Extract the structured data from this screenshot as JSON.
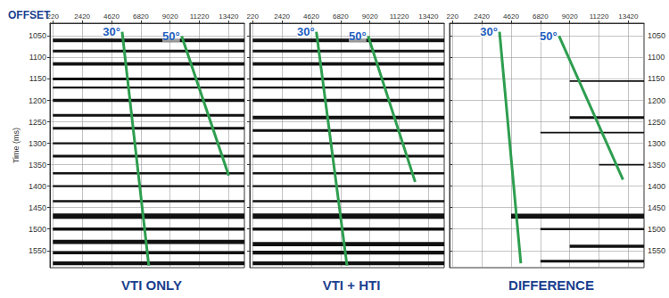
{
  "chart_data": [
    {
      "type": "line",
      "title": "VTI ONLY",
      "x_label": "OFFSET",
      "y_label": "Time (ms)",
      "xlim": [
        0,
        14600
      ],
      "xticks": [
        220,
        2420,
        4620,
        6820,
        9020,
        11220,
        13420
      ],
      "ylim": [
        1020,
        1590
      ],
      "yticks": [
        1050,
        1100,
        1150,
        1200,
        1250,
        1300,
        1350,
        1400,
        1450,
        1500,
        1550
      ],
      "grid": true,
      "color": "#111111",
      "reflections": [
        {
          "time": 1060,
          "amplitude": 0.7,
          "offsets": [
            220,
            14600
          ]
        },
        {
          "time": 1085,
          "amplitude": 0.5,
          "offsets": [
            220,
            14600
          ]
        },
        {
          "time": 1115,
          "amplitude": 0.6,
          "offsets": [
            220,
            14600
          ]
        },
        {
          "time": 1150,
          "amplitude": 0.5,
          "offsets": [
            220,
            14600
          ]
        },
        {
          "time": 1170,
          "amplitude": 0.4,
          "offsets": [
            220,
            14600
          ]
        },
        {
          "time": 1200,
          "amplitude": 0.6,
          "offsets": [
            220,
            14600
          ]
        },
        {
          "time": 1235,
          "amplitude": 0.5,
          "offsets": [
            220,
            14600
          ]
        },
        {
          "time": 1265,
          "amplitude": 0.5,
          "offsets": [
            220,
            14600
          ]
        },
        {
          "time": 1300,
          "amplitude": 0.4,
          "offsets": [
            220,
            14600
          ]
        },
        {
          "time": 1330,
          "amplitude": 0.5,
          "offsets": [
            220,
            14600
          ]
        },
        {
          "time": 1370,
          "amplitude": 0.4,
          "offsets": [
            220,
            14600
          ]
        },
        {
          "time": 1400,
          "amplitude": 0.4,
          "offsets": [
            220,
            14600
          ]
        },
        {
          "time": 1435,
          "amplitude": 0.4,
          "offsets": [
            220,
            14600
          ]
        },
        {
          "time": 1470,
          "amplitude": 1.0,
          "offsets": [
            220,
            14600
          ]
        },
        {
          "time": 1500,
          "amplitude": 0.6,
          "offsets": [
            220,
            14600
          ]
        },
        {
          "time": 1530,
          "amplitude": 0.8,
          "offsets": [
            220,
            14600
          ]
        },
        {
          "time": 1555,
          "amplitude": 0.6,
          "offsets": [
            220,
            14600
          ]
        },
        {
          "time": 1580,
          "amplitude": 0.7,
          "offsets": [
            220,
            14600
          ]
        }
      ],
      "series": [
        {
          "name": "30°",
          "color": "#2e9e4f",
          "x": [
            5420,
            7420
          ],
          "values": [
            1040,
            1585
          ]
        },
        {
          "name": "50°",
          "color": "#2e9e4f",
          "x": [
            9890,
            13420
          ],
          "values": [
            1050,
            1375
          ]
        }
      ]
    },
    {
      "type": "line",
      "title": "VTI + HTI",
      "xlim": [
        0,
        14600
      ],
      "xticks": [
        220,
        2420,
        4620,
        6820,
        9020,
        11220,
        13420
      ],
      "ylim": [
        1020,
        1590
      ],
      "yticks": [
        1050,
        1100,
        1150,
        1200,
        1250,
        1300,
        1350,
        1400,
        1450,
        1500,
        1550
      ],
      "grid": true,
      "tick_labels": "x",
      "color": "#111111",
      "reflections": [
        {
          "time": 1060,
          "amplitude": 0.7,
          "offsets": [
            220,
            14600
          ]
        },
        {
          "time": 1085,
          "amplitude": 0.5,
          "offsets": [
            220,
            14600
          ]
        },
        {
          "time": 1115,
          "amplitude": 0.6,
          "offsets": [
            220,
            14600
          ]
        },
        {
          "time": 1150,
          "amplitude": 0.5,
          "offsets": [
            220,
            14600
          ]
        },
        {
          "time": 1170,
          "amplitude": 0.4,
          "offsets": [
            220,
            14600
          ]
        },
        {
          "time": 1200,
          "amplitude": 0.6,
          "offsets": [
            220,
            14600
          ]
        },
        {
          "time": 1240,
          "amplitude": 0.7,
          "offsets": [
            220,
            14600
          ]
        },
        {
          "time": 1270,
          "amplitude": 0.5,
          "offsets": [
            220,
            14600
          ]
        },
        {
          "time": 1300,
          "amplitude": 0.4,
          "offsets": [
            220,
            14600
          ]
        },
        {
          "time": 1330,
          "amplitude": 0.5,
          "offsets": [
            220,
            14600
          ]
        },
        {
          "time": 1370,
          "amplitude": 0.4,
          "offsets": [
            220,
            14600
          ]
        },
        {
          "time": 1400,
          "amplitude": 0.4,
          "offsets": [
            220,
            14600
          ]
        },
        {
          "time": 1435,
          "amplitude": 0.4,
          "offsets": [
            220,
            14600
          ]
        },
        {
          "time": 1470,
          "amplitude": 1.0,
          "offsets": [
            220,
            14600
          ]
        },
        {
          "time": 1500,
          "amplitude": 0.6,
          "offsets": [
            220,
            14600
          ]
        },
        {
          "time": 1535,
          "amplitude": 0.8,
          "offsets": [
            220,
            14600
          ]
        },
        {
          "time": 1555,
          "amplitude": 0.7,
          "offsets": [
            220,
            14600
          ]
        },
        {
          "time": 1580,
          "amplitude": 0.7,
          "offsets": [
            220,
            14600
          ]
        }
      ],
      "series": [
        {
          "name": "30°",
          "color": "#2e9e4f",
          "x": [
            5000,
            7300
          ],
          "values": [
            1040,
            1585
          ]
        },
        {
          "name": "50°",
          "color": "#2e9e4f",
          "x": [
            8890,
            12420
          ],
          "values": [
            1050,
            1390
          ]
        }
      ]
    },
    {
      "type": "line",
      "title": "DIFFERENCE",
      "xlim": [
        0,
        14600
      ],
      "xticks": [
        220,
        2420,
        4620,
        6820,
        9020,
        11220,
        13420
      ],
      "ylim": [
        1020,
        1590
      ],
      "yticks": [
        1050,
        1100,
        1150,
        1200,
        1250,
        1300,
        1350,
        1400,
        1450,
        1500,
        1550
      ],
      "grid": true,
      "color": "#111111",
      "reflections": [
        {
          "time": 1155,
          "amplitude": 0.3,
          "offsets": [
            9020,
            14600
          ]
        },
        {
          "time": 1240,
          "amplitude": 0.5,
          "offsets": [
            9020,
            14600
          ]
        },
        {
          "time": 1275,
          "amplitude": 0.3,
          "offsets": [
            6820,
            14600
          ]
        },
        {
          "time": 1350,
          "amplitude": 0.3,
          "offsets": [
            11220,
            14600
          ]
        },
        {
          "time": 1470,
          "amplitude": 0.9,
          "offsets": [
            4620,
            14600
          ]
        },
        {
          "time": 1500,
          "amplitude": 0.4,
          "offsets": [
            6820,
            14600
          ]
        },
        {
          "time": 1540,
          "amplitude": 0.6,
          "offsets": [
            9020,
            14600
          ]
        },
        {
          "time": 1575,
          "amplitude": 0.5,
          "offsets": [
            6820,
            14600
          ]
        }
      ],
      "series": [
        {
          "name": "30°",
          "color": "#2e9e4f",
          "x": [
            3750,
            5350
          ],
          "values": [
            1040,
            1580
          ]
        },
        {
          "name": "50°",
          "color": "#2e9e4f",
          "x": [
            8220,
            13020
          ],
          "values": [
            1050,
            1385
          ]
        }
      ]
    }
  ]
}
